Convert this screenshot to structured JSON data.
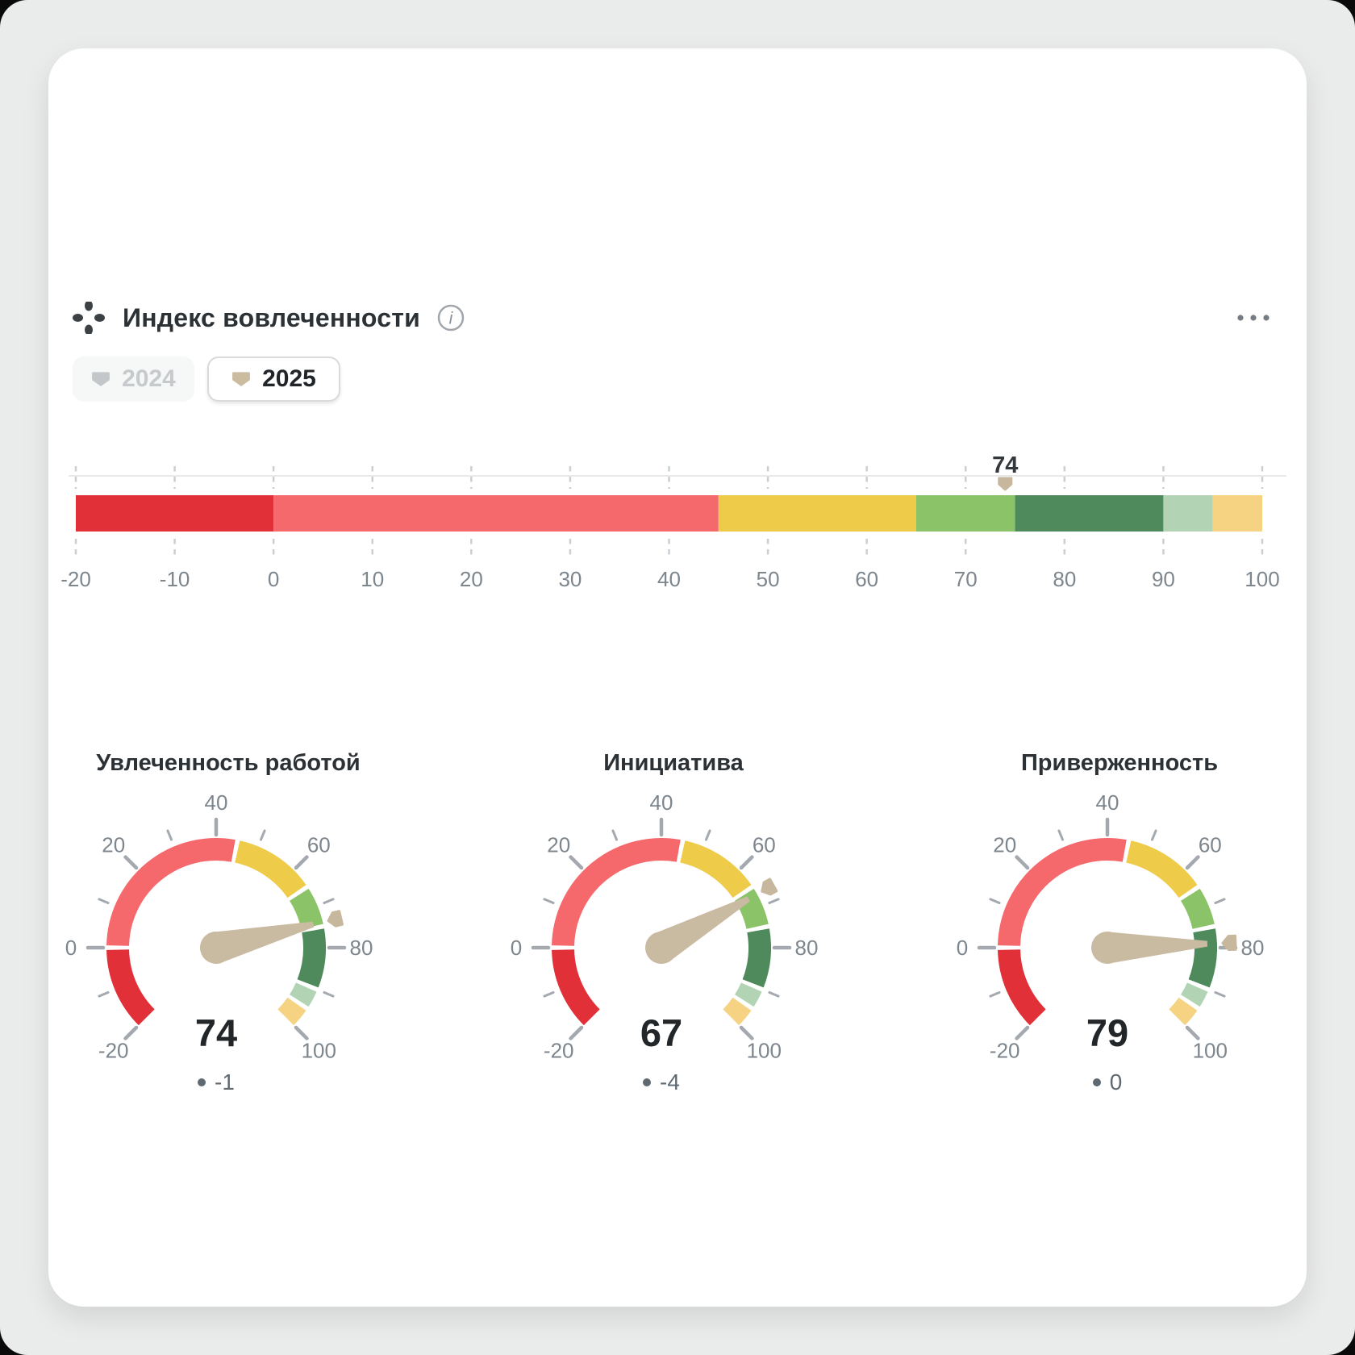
{
  "header": {
    "title": "Индекс вовлеченности",
    "info_icon": "i",
    "years": [
      {
        "label": "2024",
        "active": false
      },
      {
        "label": "2025",
        "active": true
      }
    ]
  },
  "chart_data": {
    "type": "gauge",
    "title": "Индекс вовлеченности",
    "scale": {
      "min": -20,
      "max": 100
    },
    "bands": [
      {
        "from": -20,
        "to": 0,
        "color": "#E13038"
      },
      {
        "from": 0,
        "to": 45,
        "color": "#F5696D"
      },
      {
        "from": 45,
        "to": 65,
        "color": "#EFCB4A"
      },
      {
        "from": 65,
        "to": 75,
        "color": "#8BC368"
      },
      {
        "from": 75,
        "to": 90,
        "color": "#4F8A5C"
      },
      {
        "from": 90,
        "to": 95,
        "color": "#B2D4B4"
      },
      {
        "from": 95,
        "to": 100,
        "color": "#F6D383"
      }
    ],
    "linear": {
      "value": 74,
      "tick_step": 10,
      "axis_labels": [
        -20,
        -10,
        0,
        10,
        20,
        30,
        40,
        50,
        60,
        70,
        80,
        90,
        100
      ]
    },
    "gauges": [
      {
        "title": "Увлеченность работой",
        "value": 74,
        "delta": "-1"
      },
      {
        "title": "Инициатива",
        "value": 67,
        "delta": "-4"
      },
      {
        "title": "Приверженность",
        "value": 79,
        "delta": "0"
      }
    ],
    "gauge_axis": {
      "start_angle": 225,
      "end_angle": -45,
      "tick_step": 10,
      "labels": [
        -20,
        0,
        20,
        40,
        60,
        80,
        100
      ]
    },
    "colors": {
      "needle": "#C9BAA2",
      "marker": "#C6B79D",
      "tick": "#A3A9AF",
      "dash": "#CBCFD2",
      "label": "#7E868D",
      "marker_label": "#33383C"
    }
  }
}
